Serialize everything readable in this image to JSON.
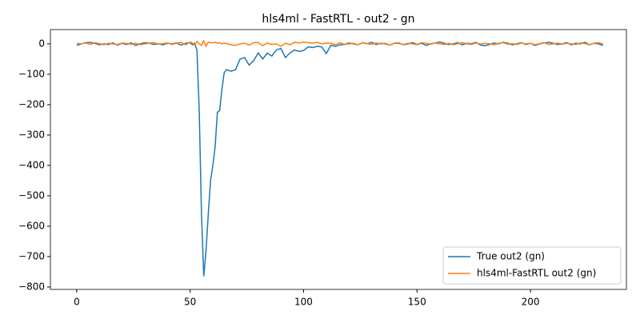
{
  "chart_data": {
    "type": "line",
    "title": "hls4ml - FastRTL - out2 - gn",
    "x": [
      0,
      2,
      4,
      6,
      8,
      10,
      12,
      14,
      16,
      18,
      20,
      22,
      24,
      26,
      28,
      30,
      32,
      34,
      36,
      38,
      40,
      42,
      44,
      46,
      48,
      50,
      51,
      52,
      53,
      54,
      55,
      56,
      57,
      58,
      59,
      60,
      61,
      62,
      63,
      64,
      65,
      66,
      68,
      70,
      72,
      74,
      76,
      78,
      80,
      82,
      84,
      86,
      88,
      90,
      92,
      94,
      96,
      98,
      100,
      102,
      104,
      106,
      108,
      110,
      112,
      114,
      116,
      118,
      120,
      122,
      124,
      126,
      128,
      130,
      132,
      134,
      136,
      138,
      140,
      142,
      144,
      146,
      148,
      150,
      152,
      154,
      156,
      158,
      160,
      162,
      164,
      166,
      168,
      170,
      172,
      174,
      176,
      178,
      180,
      182,
      184,
      186,
      188,
      190,
      192,
      194,
      196,
      198,
      200,
      202,
      204,
      206,
      208,
      210,
      212,
      214,
      216,
      218,
      220,
      222,
      224,
      226,
      228,
      230,
      232
    ],
    "series": [
      {
        "name": "True out2 (gn)",
        "color": "#1f77b4",
        "values": [
          -5,
          0,
          4,
          5,
          2,
          -3,
          0,
          -2,
          3,
          -4,
          2,
          -2,
          3,
          -5,
          0,
          4,
          2,
          -2,
          0,
          -3,
          2,
          0,
          3,
          -4,
          2,
          4,
          -3,
          2,
          -20,
          -220,
          -560,
          -765,
          -680,
          -560,
          -450,
          -400,
          -340,
          -225,
          -220,
          -150,
          -95,
          -85,
          -90,
          -85,
          -50,
          -45,
          -70,
          -55,
          -30,
          -50,
          -30,
          -40,
          -20,
          -15,
          -45,
          -30,
          -20,
          -25,
          -22,
          -10,
          -12,
          -8,
          -10,
          -32,
          -5,
          -8,
          -3,
          -2,
          3,
          0,
          -3,
          4,
          0,
          5,
          -2,
          2,
          0,
          -4,
          2,
          3,
          -3,
          0,
          4,
          -2,
          2,
          -5,
          0,
          3,
          6,
          2,
          -2,
          0,
          4,
          -3,
          2,
          0,
          5,
          -4,
          -6,
          -2,
          3,
          0,
          5,
          2,
          -3,
          0,
          4,
          -2,
          2,
          -5,
          0,
          3,
          5,
          2,
          -2,
          0,
          4,
          -3,
          2,
          0,
          5,
          -3,
          2,
          0,
          -5
        ]
      },
      {
        "name": "hls4ml-FastRTL out2 (gn)",
        "color": "#ff7f0e",
        "values": [
          2,
          0,
          3,
          -2,
          4,
          1,
          -3,
          2,
          0,
          -2,
          3,
          1,
          -1,
          2,
          -3,
          0,
          2,
          4,
          -1,
          1,
          3,
          -2,
          2,
          5,
          -3,
          6,
          3,
          -4,
          8,
          0,
          -5,
          10,
          -8,
          6,
          4,
          3,
          5,
          2,
          4,
          0,
          3,
          1,
          -3,
          -5,
          0,
          2,
          -4,
          4,
          5,
          -6,
          3,
          -2,
          0,
          -8,
          2,
          -3,
          5,
          3,
          6,
          4,
          2,
          5,
          0,
          3,
          2,
          -3,
          4,
          -2,
          0,
          2,
          -3,
          4,
          1,
          -2,
          3,
          0,
          2,
          -4,
          3,
          1,
          -2,
          2,
          0,
          -3,
          4,
          2,
          -1,
          3,
          0,
          -2,
          2,
          -3,
          1,
          4,
          0,
          -2,
          3,
          -1,
          2,
          0,
          -3,
          2,
          4,
          -1,
          1,
          -2,
          3,
          0,
          2,
          -3,
          1,
          4,
          -2,
          0,
          3,
          -1,
          2,
          0,
          -2,
          3,
          1,
          -3,
          2,
          4,
          0
        ]
      }
    ],
    "xlim": [
      -11.6,
      242.3
    ],
    "ylim": [
      -808,
      47
    ],
    "xticks": [
      0,
      50,
      100,
      150,
      200
    ],
    "yticks": [
      {
        "value": -800,
        "label": "−800"
      },
      {
        "value": -700,
        "label": "−700"
      },
      {
        "value": -600,
        "label": "−600"
      },
      {
        "value": -500,
        "label": "−500"
      },
      {
        "value": -400,
        "label": "−400"
      },
      {
        "value": -300,
        "label": "−300"
      },
      {
        "value": -200,
        "label": "−200"
      },
      {
        "value": -100,
        "label": "−100"
      },
      0
    ],
    "legend": "lower right",
    "grid": false
  }
}
